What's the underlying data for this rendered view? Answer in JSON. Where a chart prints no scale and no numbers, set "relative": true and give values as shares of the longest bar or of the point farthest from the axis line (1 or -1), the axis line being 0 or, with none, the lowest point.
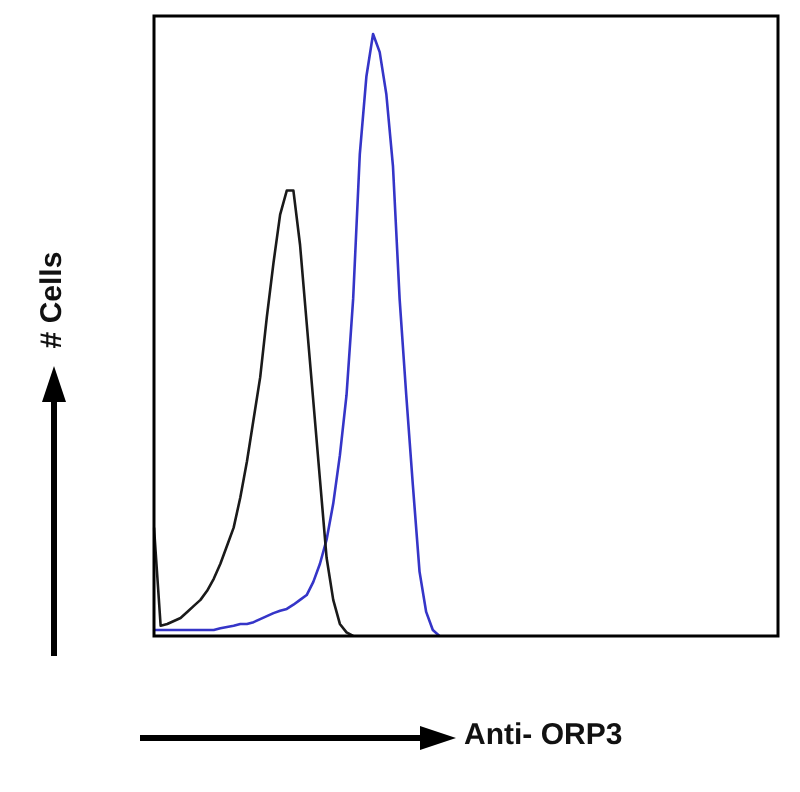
{
  "chart_data": {
    "type": "line",
    "relative": true,
    "xlabel": "Anti- ORP3",
    "ylabel": "# Cells",
    "legend": false,
    "tick_labels": false,
    "marker": "none",
    "line_style": "solid",
    "categories": [
      null,
      null,
      null,
      null,
      null,
      null,
      null,
      null,
      null,
      null,
      null,
      null,
      null,
      null,
      null,
      null,
      null,
      null,
      null,
      null,
      null,
      null,
      null,
      null,
      null,
      null,
      null,
      null,
      null,
      null,
      null,
      null,
      null,
      null,
      null,
      null,
      null,
      null,
      null,
      null,
      null,
      null,
      null,
      null,
      null,
      null,
      null,
      null,
      null,
      null,
      null,
      null,
      null,
      null,
      null,
      null,
      null,
      null,
      null,
      null,
      null,
      null,
      null,
      null,
      null,
      null,
      null,
      null,
      null,
      null,
      null,
      null,
      null,
      null,
      null,
      null,
      null,
      null,
      null,
      null,
      null,
      null,
      null,
      null,
      null,
      null,
      null,
      null,
      null,
      null,
      null,
      null,
      null,
      null,
      null
    ],
    "series": [
      {
        "color": "#1a1a1a",
        "values": [
          0.18,
          0.017,
          0.02,
          0.025,
          0.03,
          0.04,
          0.05,
          0.06,
          0.075,
          0.095,
          0.12,
          0.15,
          0.18,
          0.23,
          0.29,
          0.36,
          0.43,
          0.53,
          0.62,
          0.7,
          0.74,
          0.74,
          0.65,
          0.52,
          0.39,
          0.26,
          0.13,
          0.06,
          0.02,
          0.006,
          0,
          null,
          null,
          null,
          null,
          null,
          null,
          null,
          null,
          null,
          null,
          null,
          null,
          null,
          null,
          null,
          null,
          null,
          null,
          null,
          null,
          null,
          null,
          null,
          null,
          null,
          null,
          null,
          null,
          null,
          null,
          null,
          null,
          null,
          null,
          null,
          null,
          null,
          null,
          null,
          null,
          null,
          null,
          null,
          null,
          null,
          null,
          null,
          null,
          null,
          null,
          null,
          null,
          null,
          null,
          null,
          null,
          null,
          null,
          null,
          null,
          null,
          null,
          null,
          null
        ]
      },
      {
        "color": "#3535c8",
        "values": [
          0.01,
          0.01,
          0.01,
          0.01,
          0.01,
          0.01,
          0.01,
          0.01,
          0.01,
          0.01,
          0.013,
          0.015,
          0.017,
          0.02,
          0.02,
          0.023,
          0.028,
          0.033,
          0.038,
          0.042,
          0.045,
          0.052,
          0.06,
          0.068,
          0.09,
          0.12,
          0.16,
          0.22,
          0.3,
          0.4,
          0.56,
          0.8,
          0.93,
          1,
          0.97,
          0.9,
          0.78,
          0.56,
          0.4,
          0.25,
          0.107,
          0.04,
          0.01,
          0,
          null,
          null,
          null,
          null,
          null,
          null,
          null,
          null,
          null,
          null,
          null,
          null,
          null,
          null,
          null,
          null,
          null,
          null,
          null,
          null,
          null,
          null,
          null,
          null,
          null,
          null,
          null,
          null,
          null,
          null,
          null,
          null,
          null,
          null,
          null,
          null,
          null,
          null,
          null,
          null,
          null,
          null,
          null,
          null,
          null,
          null,
          null,
          null,
          null,
          null,
          null
        ]
      }
    ]
  }
}
